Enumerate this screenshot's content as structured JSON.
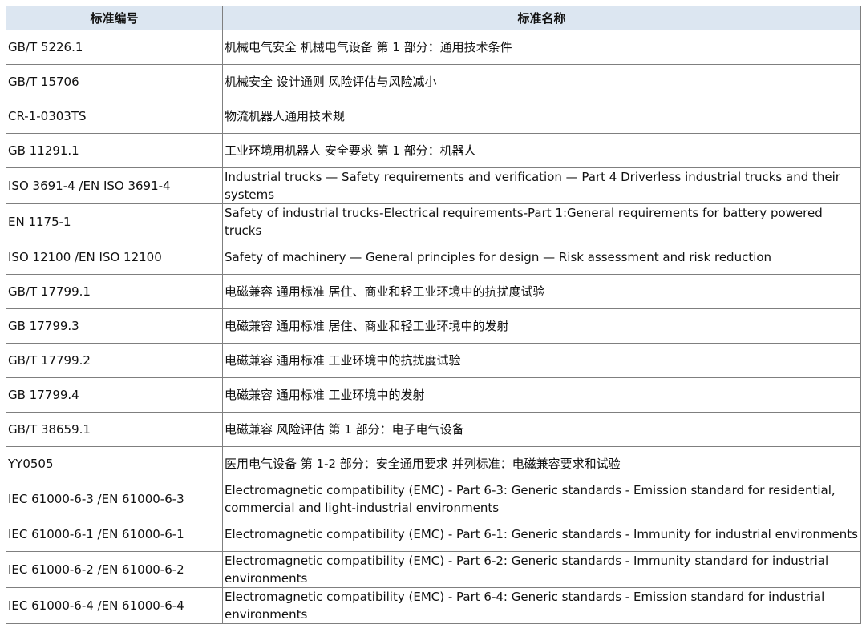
{
  "headers": {
    "code": "标准编号",
    "name": "标准名称"
  },
  "rows": [
    {
      "code": "GB/T 5226.1",
      "name": "机械电气安全 机械电气设备 第 1 部分：通用技术条件"
    },
    {
      "code": "GB/T 15706",
      "name": "机械安全 设计通则 风险评估与风险减小"
    },
    {
      "code": "CR-1-0303TS",
      "name": "物流机器人通用技术规"
    },
    {
      "code": "GB 11291.1",
      "name": "工业环境用机器人 安全要求 第 1 部分：机器人"
    },
    {
      "code": "ISO 3691-4 /EN ISO 3691-4",
      "name": "Industrial trucks — Safety requirements and verification — Part 4 Driverless industrial trucks and their systems"
    },
    {
      "code": "EN 1175-1",
      "name": "Safety of industrial trucks-Electrical requirements-Part 1:General requirements for battery powered trucks"
    },
    {
      "code": "ISO 12100 /EN ISO 12100",
      "name": "Safety of machinery — General principles for design — Risk assessment and risk reduction"
    },
    {
      "code": "GB/T 17799.1",
      "name": "电磁兼容 通用标准 居住、商业和轻工业环境中的抗扰度试验"
    },
    {
      "code": "GB 17799.3",
      "name": "电磁兼容 通用标准 居住、商业和轻工业环境中的发射"
    },
    {
      "code": "GB/T 17799.2",
      "name": "电磁兼容 通用标准 工业环境中的抗扰度试验"
    },
    {
      "code": "GB 17799.4",
      "name": "电磁兼容 通用标准 工业环境中的发射"
    },
    {
      "code": "GB/T 38659.1",
      "name": "电磁兼容 风险评估 第 1 部分：电子电气设备"
    },
    {
      "code": "YY0505",
      "name": "医用电气设备 第 1-2 部分：安全通用要求 并列标准：电磁兼容要求和试验"
    },
    {
      "code": "IEC 61000-6-3 /EN 61000-6-3",
      "name": "Electromagnetic compatibility (EMC) - Part 6-3: Generic standards - Emission standard for residential, commercial and light-industrial environments"
    },
    {
      "code": "IEC 61000-6-1 /EN 61000-6-1",
      "name": "Electromagnetic compatibility (EMC) - Part 6-1: Generic standards - Immunity for industrial environments"
    },
    {
      "code": "IEC 61000-6-2 /EN 61000-6-2",
      "name": "Electromagnetic compatibility (EMC) - Part 6-2: Generic standards - Immunity standard for industrial environments"
    },
    {
      "code": "IEC 61000-6-4 /EN 61000-6-4",
      "name": "Electromagnetic compatibility (EMC) - Part 6-4: Generic standards - Emission standard for industrial environments"
    }
  ]
}
